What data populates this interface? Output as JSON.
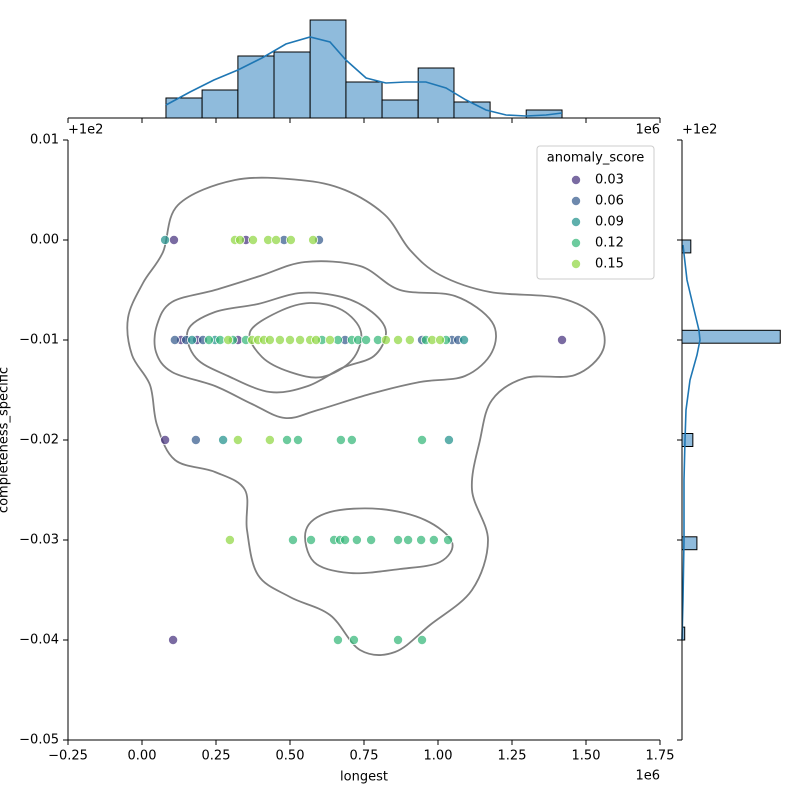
{
  "chart_data": [
    {
      "type": "scatter",
      "x_label": "longest",
      "y_label": "completeness_specific",
      "x_offset": "1e6",
      "y_offset": "+1e2",
      "xlim": [
        -0.25,
        1.75
      ],
      "ylim": [
        -0.05,
        0.01
      ],
      "xticks": [
        {
          "value": -0.25,
          "label": "−0.25"
        },
        {
          "value": 0,
          "label": "0.00"
        },
        0.25,
        {
          "value": 0.5,
          "label": "0.50"
        },
        0.75,
        {
          "value": 1,
          "label": "1.00"
        },
        1.25,
        {
          "value": 1.5,
          "label": "1.50"
        },
        1.75
      ],
      "yticks": [
        0.01,
        {
          "value": 0,
          "label": "0.00"
        },
        {
          "value": -0.01,
          "label": "−0.01"
        },
        {
          "value": -0.02,
          "label": "−0.02"
        },
        {
          "value": -0.03,
          "label": "−0.03"
        },
        {
          "value": -0.04,
          "label": "−0.04"
        },
        {
          "value": -0.05,
          "label": "−0.05"
        }
      ],
      "legend_title": "anomaly_score",
      "legend": "upper right",
      "series": [
        {
          "name": "0.03",
          "color": "#46327e",
          "x": [
            0.108,
            0.351,
            0.132,
            0.186,
            0.324,
            1.419,
            0.078,
            0.105
          ],
          "y": [
            0,
            0,
            -0.01,
            -0.01,
            -0.01,
            -0.01,
            -0.02,
            -0.04
          ]
        },
        {
          "name": "0.06",
          "color": "#365c8d",
          "x": [
            0.48,
            0.598,
            0.111,
            0.149,
            0.206,
            0.686,
            0.946,
            1.047,
            1.068,
            0.182
          ],
          "y": [
            0,
            0,
            -0.01,
            -0.01,
            -0.01,
            -0.01,
            -0.01,
            -0.01,
            -0.01,
            -0.02
          ]
        },
        {
          "name": "0.09",
          "color": "#21918c",
          "x": [
            0.078,
            0.169,
            0.247,
            1.088,
            0.274,
            1.037
          ],
          "y": [
            0,
            -0.01,
            -0.01,
            -0.01,
            -0.02,
            -0.02
          ]
        },
        {
          "name": "0.12",
          "color": "#35b779",
          "x": [
            0.226,
            0.264,
            0.307,
            0.351,
            0.608,
            0.662,
            0.709,
            0.73,
            0.757,
            0.797,
            0.959,
            1.027,
            0.49,
            0.527,
            0.672,
            0.709,
            0.946,
            0.51,
            0.571,
            0.649,
            0.669,
            0.686,
            0.726,
            0.774,
            0.865,
            0.899,
            0.943,
            0.986,
            1.034,
            0.662,
            0.716,
            0.865,
            0.946
          ],
          "y": [
            -0.01,
            -0.01,
            -0.01,
            -0.01,
            -0.01,
            -0.01,
            -0.01,
            -0.01,
            -0.01,
            -0.01,
            -0.01,
            -0.01,
            -0.02,
            -0.02,
            -0.02,
            -0.02,
            -0.02,
            -0.03,
            -0.03,
            -0.03,
            -0.03,
            -0.03,
            -0.03,
            -0.03,
            -0.03,
            -0.03,
            -0.03,
            -0.03,
            -0.03,
            -0.04,
            -0.04,
            -0.04,
            -0.04
          ]
        },
        {
          "name": "0.15",
          "color": "#90d743",
          "x": [
            0.314,
            0.331,
            0.375,
            0.426,
            0.453,
            0.503,
            0.578,
            0.291,
            0.372,
            0.392,
            0.412,
            0.432,
            0.466,
            0.5,
            0.534,
            0.568,
            0.588,
            0.635,
            0.824,
            0.865,
            0.905,
            0.98,
            1.007,
            0.324,
            0.432,
            0.297
          ],
          "y": [
            0,
            0,
            0,
            0,
            0,
            0,
            0,
            -0.01,
            -0.01,
            -0.01,
            -0.01,
            -0.01,
            -0.01,
            -0.01,
            -0.01,
            -0.01,
            -0.01,
            -0.01,
            -0.01,
            -0.01,
            -0.01,
            -0.01,
            -0.01,
            -0.02,
            -0.02,
            -0.03
          ]
        }
      ]
    },
    {
      "type": "histogram",
      "color": "#8fbbdc",
      "line_color": "#1f77b4",
      "ylim": [
        0,
        51
      ],
      "bins": [
        0.081,
        0.203,
        0.324,
        0.446,
        0.568,
        0.689,
        0.811,
        0.933,
        1.054,
        1.176,
        1.298,
        1.419
      ],
      "values": [
        10,
        14,
        31,
        33,
        49,
        18,
        9,
        25,
        8,
        0,
        4
      ],
      "kde": {
        "x": [
          0.081,
          0.162,
          0.243,
          0.324,
          0.405,
          0.486,
          0.568,
          0.635,
          0.689,
          0.757,
          0.824,
          0.892,
          0.959,
          1.027,
          1.095,
          1.162,
          1.23,
          1.297,
          1.365,
          1.419
        ],
        "values": [
          6.5,
          13,
          19,
          24,
          30,
          37,
          40.5,
          38,
          29,
          20,
          17.5,
          18,
          18,
          15,
          9,
          4,
          1.5,
          1,
          1.5,
          2.5
        ]
      }
    },
    {
      "type": "histogram",
      "orientation": "horizontal",
      "color": "#8fbbdc",
      "line_color": "#1f77b4",
      "xlim": [
        0,
        152
      ],
      "bins": [
        -0.04,
        -0.03871,
        -0.03742,
        -0.03613,
        -0.03484,
        -0.03355,
        -0.03226,
        -0.03097,
        -0.02968,
        -0.02839,
        -0.0271,
        -0.02581,
        -0.02452,
        -0.02323,
        -0.02194,
        -0.02065,
        -0.01935,
        -0.01806,
        -0.01677,
        -0.01548,
        -0.01419,
        -0.0129,
        -0.01161,
        -0.01032,
        -0.00903,
        -0.00774,
        -0.00645,
        -0.00516,
        -0.00387,
        -0.00258,
        -0.00129,
        0
      ],
      "values": [
        4,
        0,
        0,
        0,
        0,
        0,
        0,
        22,
        0,
        0,
        0,
        0,
        0,
        0,
        0,
        16,
        0,
        0,
        0,
        0,
        0,
        0,
        0,
        145,
        0,
        0,
        0,
        0,
        0,
        0,
        13
      ],
      "kde": {
        "y": [
          -0.0005,
          -0.004,
          -0.007,
          -0.009,
          -0.01,
          -0.0115,
          -0.014,
          -0.017,
          -0.02,
          -0.024,
          -0.03,
          -0.036,
          -0.04
        ],
        "values": [
          1.5,
          7.4,
          17.8,
          25,
          26.6,
          22.2,
          11.8,
          5.9,
          4.4,
          3,
          3,
          1.5,
          0
        ]
      }
    }
  ]
}
